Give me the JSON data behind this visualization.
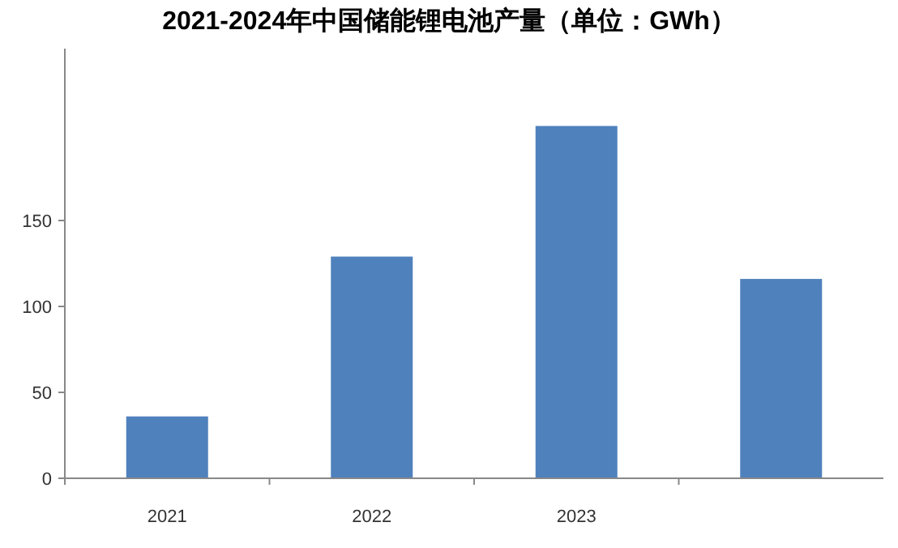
{
  "chart_data": {
    "type": "bar",
    "title": "2021-2024年中国储能锂电池产量（单位：GWh）",
    "categories": [
      "2021",
      "2022",
      "2023",
      null
    ],
    "values": [
      36,
      129,
      205,
      116
    ],
    "color": "#4f81bd",
    "ylim": [
      0,
      250
    ],
    "yticks": [
      0,
      50,
      100,
      150
    ],
    "grid": false
  }
}
